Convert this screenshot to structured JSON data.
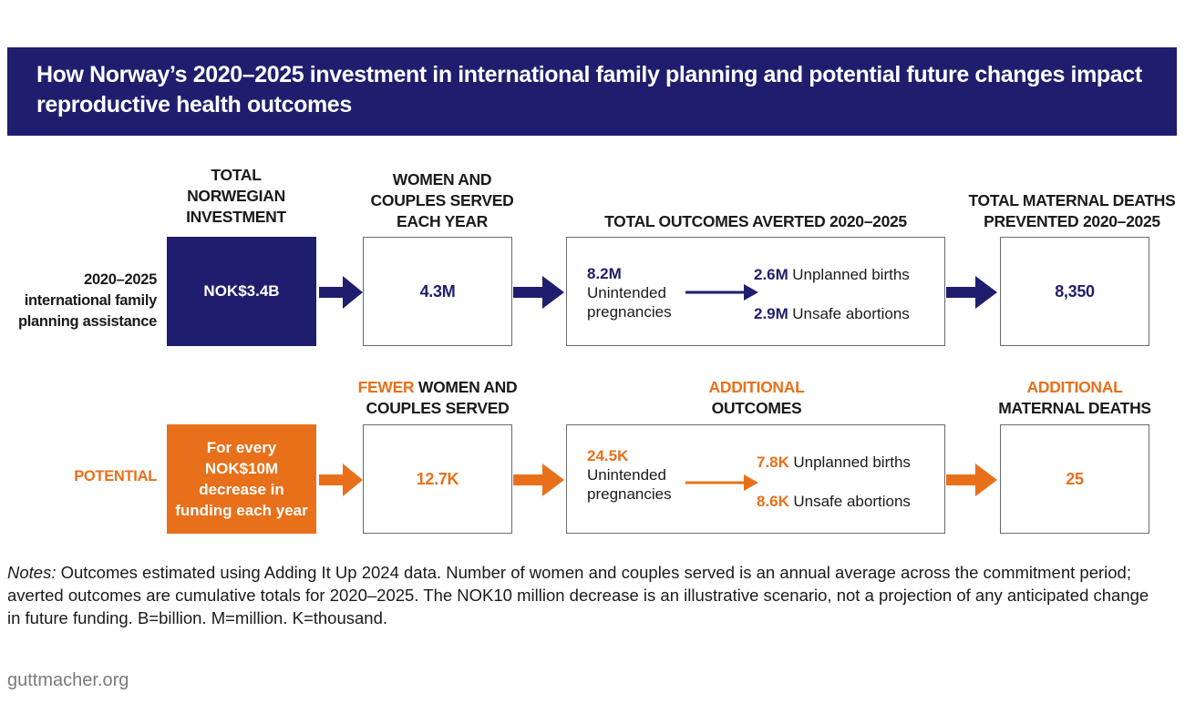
{
  "title": "How Norway’s 2020–2025 investment in international family planning and potential future changes impact reproductive health outcomes",
  "colors": {
    "navy": "#1f1e6e",
    "orange": "#e8701a"
  },
  "top_row": {
    "label": "2020–2025 international family planning assistance",
    "headers": {
      "investment": "TOTAL NORWEGIAN INVESTMENT",
      "served": "WOMEN AND COUPLES SERVED EACH YEAR",
      "outcomes": "TOTAL OUTCOMES AVERTED 2020–2025",
      "deaths": "TOTAL MATERNAL DEATHS PREVENTED 2020–2025"
    },
    "investment_value": "NOK$3.4B",
    "served_value": "4.3M",
    "pregnancies_value": "8.2M",
    "pregnancies_label": "Unintended pregnancies",
    "births_value": "2.6M",
    "births_label": "Unplanned births",
    "abortions_value": "2.9M",
    "abortions_label": "Unsafe abortions",
    "deaths_value": "8,350"
  },
  "bottom_row": {
    "label": "POTENTIAL",
    "headers": {
      "served_highlight": "FEWER",
      "served_rest": "WOMEN AND COUPLES SERVED",
      "outcomes_highlight": "ADDITIONAL",
      "outcomes_rest": "OUTCOMES",
      "deaths_highlight": "ADDITIONAL",
      "deaths_rest": "MATERNAL DEATHS"
    },
    "investment_text": "For every NOK$10M decrease in funding each year",
    "served_value": "12.7K",
    "pregnancies_value": "24.5K",
    "pregnancies_label": "Unintended pregnancies",
    "births_value": "7.8K",
    "births_label": "Unplanned births",
    "abortions_value": "8.6K",
    "abortions_label": "Unsafe abortions",
    "deaths_value": "25"
  },
  "notes": {
    "prefix": "Notes:",
    "text": "Outcomes estimated using Adding It Up 2024 data. Number of women and couples served is an annual average across the commitment period; averted outcomes are cumulative totals for 2020–2025. The NOK10 million decrease is an illustrative scenario, not a projection of any anticipated change in future funding. B=billion. M=million. K=thousand."
  },
  "footer": "guttmacher.org"
}
